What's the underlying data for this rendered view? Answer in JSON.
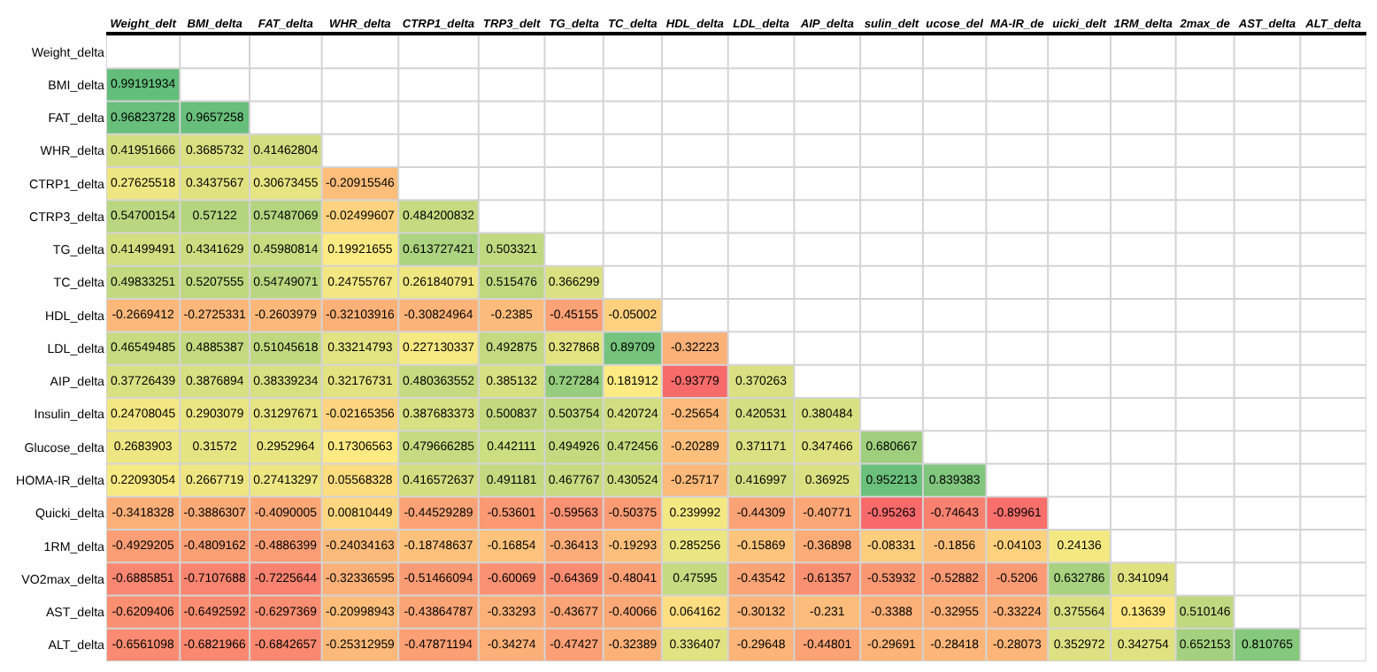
{
  "chart_data": {
    "type": "heatmap",
    "categories": [
      "Weight_delt",
      "BMI_delta",
      "FAT_delta",
      "WHR_delta",
      "CTRP1_delta",
      "TRP3_delt",
      "TG_delta",
      "TC_delta",
      "HDL_delta",
      "LDL_delta",
      "AIP_delta",
      "sulin_delt",
      "ucose_del",
      "MA-IR_de",
      "uicki_delt",
      "1RM_delta",
      "2max_de",
      "AST_delta",
      "ALT_delta"
    ],
    "y_categories": [
      "Weight_delta",
      "BMI_delta",
      "FAT_delta",
      "WHR_delta",
      "CTRP1_delta",
      "CTRP3_delta",
      "TG_delta",
      "TC_delta",
      "HDL_delta",
      "LDL_delta",
      "AIP_delta",
      "Insulin_delta",
      "Glucose_delta",
      "HOMA-IR_delta",
      "Quicki_delta",
      "1RM_delta",
      "VO2max_delta",
      "AST_delta",
      "ALT_delta"
    ],
    "cells": [
      [
        null,
        null,
        null,
        null,
        null,
        null,
        null,
        null,
        null,
        null,
        null,
        null,
        null,
        null,
        null,
        null,
        null,
        null,
        null
      ],
      [
        0.99191934,
        null,
        null,
        null,
        null,
        null,
        null,
        null,
        null,
        null,
        null,
        null,
        null,
        null,
        null,
        null,
        null,
        null,
        null
      ],
      [
        0.96823728,
        0.9657258,
        null,
        null,
        null,
        null,
        null,
        null,
        null,
        null,
        null,
        null,
        null,
        null,
        null,
        null,
        null,
        null,
        null
      ],
      [
        0.41951666,
        0.3685732,
        0.41462804,
        null,
        null,
        null,
        null,
        null,
        null,
        null,
        null,
        null,
        null,
        null,
        null,
        null,
        null,
        null,
        null
      ],
      [
        0.27625518,
        0.3437567,
        0.30673455,
        -0.20915546,
        null,
        null,
        null,
        null,
        null,
        null,
        null,
        null,
        null,
        null,
        null,
        null,
        null,
        null,
        null
      ],
      [
        0.54700154,
        0.57122,
        0.57487069,
        -0.02499607,
        0.484200832,
        null,
        null,
        null,
        null,
        null,
        null,
        null,
        null,
        null,
        null,
        null,
        null,
        null,
        null
      ],
      [
        0.41499491,
        0.4341629,
        0.45980814,
        0.19921655,
        0.613727421,
        0.503321,
        null,
        null,
        null,
        null,
        null,
        null,
        null,
        null,
        null,
        null,
        null,
        null,
        null
      ],
      [
        0.49833251,
        0.5207555,
        0.54749071,
        0.24755767,
        0.261840791,
        0.515476,
        0.366299,
        null,
        null,
        null,
        null,
        null,
        null,
        null,
        null,
        null,
        null,
        null,
        null
      ],
      [
        -0.2669412,
        -0.2725331,
        -0.2603979,
        -0.32103916,
        -0.30824964,
        -0.2385,
        -0.45155,
        -0.05002,
        null,
        null,
        null,
        null,
        null,
        null,
        null,
        null,
        null,
        null,
        null
      ],
      [
        0.46549485,
        0.4885387,
        0.51045618,
        0.33214793,
        0.227130337,
        0.492875,
        0.327868,
        0.89709,
        -0.32223,
        null,
        null,
        null,
        null,
        null,
        null,
        null,
        null,
        null,
        null
      ],
      [
        0.37726439,
        0.3876894,
        0.38339234,
        0.32176731,
        0.480363552,
        0.385132,
        0.727284,
        0.181912,
        -0.93779,
        0.370263,
        null,
        null,
        null,
        null,
        null,
        null,
        null,
        null,
        null
      ],
      [
        0.24708045,
        0.2903079,
        0.31297671,
        -0.02165356,
        0.387683373,
        0.500837,
        0.503754,
        0.420724,
        -0.25654,
        0.420531,
        0.380484,
        null,
        null,
        null,
        null,
        null,
        null,
        null,
        null
      ],
      [
        0.2683903,
        0.31572,
        0.2952964,
        0.17306563,
        0.479666285,
        0.442111,
        0.494926,
        0.472456,
        -0.20289,
        0.371171,
        0.347466,
        0.680667,
        null,
        null,
        null,
        null,
        null,
        null,
        null
      ],
      [
        0.22093054,
        0.2667719,
        0.27413297,
        0.05568328,
        0.416572637,
        0.491181,
        0.467767,
        0.430524,
        -0.25717,
        0.416997,
        0.36925,
        0.952213,
        0.839383,
        null,
        null,
        null,
        null,
        null,
        null
      ],
      [
        -0.3418328,
        -0.3886307,
        -0.4090005,
        0.00810449,
        -0.44529289,
        -0.53601,
        -0.59563,
        -0.50375,
        0.239992,
        -0.44309,
        -0.40771,
        -0.95263,
        -0.74643,
        -0.89961,
        null,
        null,
        null,
        null,
        null
      ],
      [
        -0.4929205,
        -0.4809162,
        -0.4886399,
        -0.24034163,
        -0.18748637,
        -0.16854,
        -0.36413,
        -0.19293,
        0.285256,
        -0.15869,
        -0.36898,
        -0.08331,
        -0.1856,
        -0.04103,
        0.24136,
        null,
        null,
        null,
        null
      ],
      [
        -0.6885851,
        -0.7107688,
        -0.7225644,
        -0.32336595,
        -0.51466094,
        -0.60069,
        -0.64369,
        -0.48041,
        0.47595,
        -0.43542,
        -0.61357,
        -0.53932,
        -0.52882,
        -0.5206,
        0.632786,
        0.341094,
        null,
        null,
        null
      ],
      [
        -0.6209406,
        -0.6492592,
        -0.6297369,
        -0.20998943,
        -0.43864787,
        -0.33293,
        -0.43677,
        -0.40066,
        0.064162,
        -0.30132,
        -0.231,
        -0.3388,
        -0.32955,
        -0.33224,
        0.375564,
        0.13639,
        0.510146,
        null,
        null
      ],
      [
        -0.6561098,
        -0.6821966,
        -0.6842657,
        -0.25312959,
        -0.47871194,
        -0.34274,
        -0.47427,
        -0.32389,
        0.336407,
        -0.29648,
        -0.44801,
        -0.29691,
        -0.28418,
        -0.28073,
        0.352972,
        0.342754,
        0.652153,
        0.810765,
        null
      ]
    ],
    "data_labels": true,
    "grid": true
  }
}
